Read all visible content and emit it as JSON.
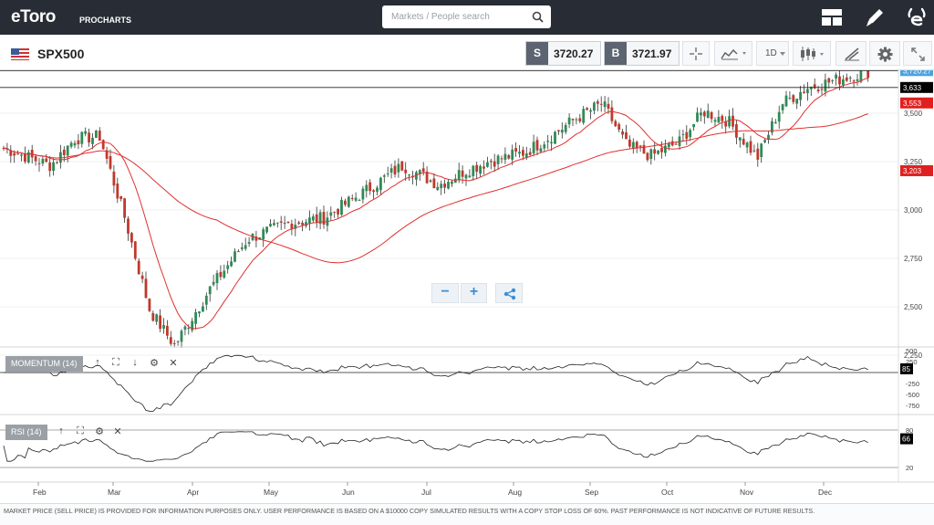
{
  "app": {
    "logo": "eToro",
    "logo_sub": "PROCHARTS",
    "search_placeholder": "Markets / People search"
  },
  "toolbar": {
    "symbol": "SPX500",
    "sell_letter": "S",
    "sell_price": "3720.27",
    "buy_letter": "B",
    "buy_price": "3721.97",
    "interval": "1D"
  },
  "price_axis": {
    "ticks": [
      "3,500",
      "3,250",
      "3,000",
      "2,750",
      "2,500",
      "2,250"
    ],
    "tags": [
      {
        "text": "3,720.27",
        "color": "#4aa3df"
      },
      {
        "text": "3,633",
        "color": "#000000"
      },
      {
        "text": "3,553",
        "color": "#e02020"
      },
      {
        "text": "3,203",
        "color": "#e02020"
      }
    ]
  },
  "momentum": {
    "label": "MOMENTUM (14)",
    "ticks": [
      "500",
      "250",
      "-250",
      "-500",
      "-750"
    ],
    "value_tag": "85"
  },
  "rsi": {
    "label": "RSI (14)",
    "ticks": [
      "80",
      "20"
    ],
    "value_tag": "66"
  },
  "x_axis": {
    "months": [
      "Feb",
      "Mar",
      "Apr",
      "May",
      "Jun",
      "Jul",
      "Aug",
      "Sep",
      "Oct",
      "Nov",
      "Dec"
    ]
  },
  "controls": {
    "zoom_out": "−",
    "zoom_in": "+"
  },
  "disclaimer": "MARKET PRICE (SELL PRICE) IS PROVIDED FOR INFORMATION PURPOSES ONLY. USER PERFORMANCE IS BASED ON A $10000 COPY SIMULATED RESULTS WITH A COPY STOP LOSS OF 60%. PAST PERFORMANCE IS NOT INDICATIVE OF FUTURE RESULTS.",
  "colors": {
    "topbar": "#272c35",
    "up": "#2e8b57",
    "down": "#c0392b",
    "ma": "#e03030",
    "accent": "#3d8fd6"
  },
  "icons": {
    "layout": "layout-icon",
    "edit": "pencil-icon",
    "profile": "etoro-e-icon",
    "crosshair": "crosshair-icon",
    "chart_type": "line-chart-icon",
    "candles": "candlestick-icon",
    "draw": "draw-icon",
    "settings": "gear-icon",
    "fullscreen": "expand-icon"
  },
  "chart_data": {
    "type": "candlestick",
    "symbol": "SPX500",
    "x_months": [
      "Feb",
      "Mar",
      "Apr",
      "May",
      "Jun",
      "Jul",
      "Aug",
      "Sep",
      "Oct",
      "Nov",
      "Dec"
    ],
    "close_path": [
      [
        "Jan",
        3320
      ],
      [
        "Feb",
        3230
      ],
      [
        "Feb",
        3370
      ],
      [
        "Feb",
        3380
      ],
      [
        "Mar",
        2950
      ],
      [
        "Mar",
        2480
      ],
      [
        "Mar",
        2300
      ],
      [
        "Apr",
        2600
      ],
      [
        "Apr",
        2850
      ],
      [
        "May",
        2930
      ],
      [
        "May",
        2960
      ],
      [
        "Jun",
        3100
      ],
      [
        "Jun",
        3230
      ],
      [
        "Jul",
        3130
      ],
      [
        "Jul",
        3200
      ],
      [
        "Jul",
        3250
      ],
      [
        "Aug",
        3300
      ],
      [
        "Aug",
        3380
      ],
      [
        "Aug",
        3470
      ],
      [
        "Sep",
        3550
      ],
      [
        "Sep",
        3330
      ],
      [
        "Sep",
        3280
      ],
      [
        "Oct",
        3350
      ],
      [
        "Oct",
        3510
      ],
      [
        "Oct",
        3460
      ],
      [
        "Nov",
        3270
      ],
      [
        "Nov",
        3550
      ],
      [
        "Nov",
        3630
      ],
      [
        "Dec",
        3680
      ],
      [
        "Dec",
        3720
      ]
    ],
    "ma_fast_label": "3,553",
    "ma_slow_label": "3,203",
    "last_price": 3720.27,
    "y_ticks": [
      3500,
      3250,
      3000,
      2750,
      2500,
      2250
    ],
    "momentum_last": 85,
    "rsi_last": 66
  }
}
